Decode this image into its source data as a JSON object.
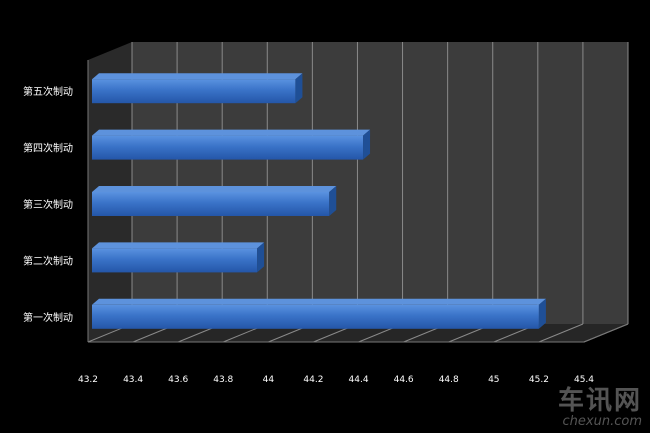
{
  "chart_data": {
    "type": "bar",
    "orientation": "horizontal",
    "style": "3d",
    "title": "",
    "xlabel": "",
    "ylabel": "",
    "categories": [
      "第一次制动",
      "第二次制动",
      "第三次制动",
      "第四次制动",
      "第五次制动"
    ],
    "values": [
      45.2,
      43.95,
      44.27,
      44.42,
      44.12
    ],
    "xlim": [
      43.2,
      45.4
    ],
    "xticks": [
      "43.2",
      "43.4",
      "43.6",
      "43.8",
      "44",
      "44.2",
      "44.4",
      "44.6",
      "44.8",
      "45",
      "45.2",
      "45.4"
    ],
    "grid": true,
    "legend": "none",
    "colors": {
      "bar": "#3a73c8",
      "bar_top": "#5d92dc",
      "bar_side": "#1f4f96",
      "plot_bg": "#3c3c3c",
      "floor": "#262626",
      "grid": "#8a8a8a",
      "text": "#ffffff"
    }
  },
  "watermark": {
    "main": "车讯网",
    "sub": "chexun.com"
  }
}
